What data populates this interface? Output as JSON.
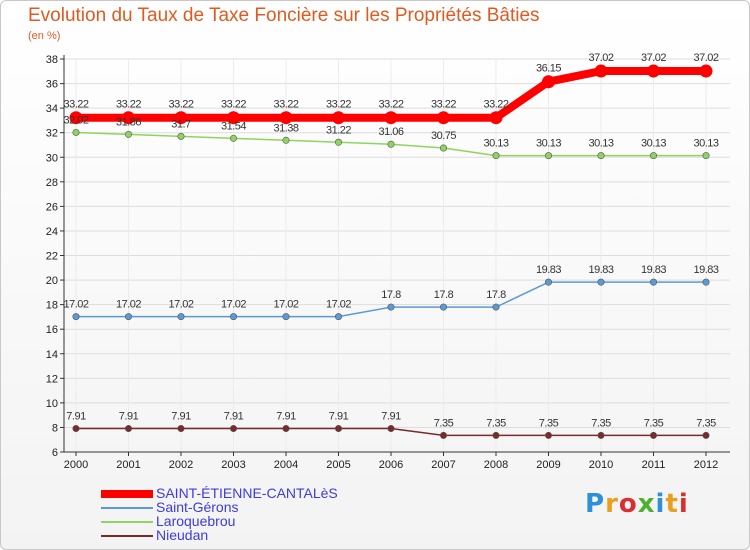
{
  "title": "Evolution du Taux de Taxe Foncière sur les Propriétés Bâties",
  "unit": "(en %)",
  "logo": {
    "text": "Proxiti",
    "colors": [
      "#2f8fd8",
      "#e8a020",
      "#d83030",
      "#50b030",
      "#2f8fd8",
      "#e8a020",
      "#d83030"
    ]
  },
  "chart_data": {
    "type": "line",
    "title": "Evolution du Taux de Taxe Foncière sur les Propriétés Bâties",
    "ylabel": "(en %)",
    "xlabel": "",
    "x": [
      "2000",
      "2001",
      "2002",
      "2003",
      "2004",
      "2005",
      "2006",
      "2007",
      "2008",
      "2009",
      "2010",
      "2011",
      "2012"
    ],
    "ylim": [
      6,
      38
    ],
    "yticks": [
      6,
      8,
      10,
      12,
      14,
      16,
      18,
      20,
      22,
      24,
      26,
      28,
      30,
      32,
      34,
      36,
      38
    ],
    "grid": true,
    "legend_position": "bottom-left",
    "series": [
      {
        "name": "SAINT-ÉTIENNE-CANTALèS",
        "color": "#ff0000",
        "thick": true,
        "values": [
          33.22,
          33.22,
          33.22,
          33.22,
          33.22,
          33.22,
          33.22,
          33.22,
          33.22,
          36.15,
          37.02,
          37.02,
          37.02
        ],
        "labels": [
          "33.22",
          "33.22",
          "33.22",
          "33.22",
          "33.22",
          "33.22",
          "33.22",
          "33.22",
          "33.22",
          "36.15",
          "37.02",
          "37.02",
          "37.02"
        ]
      },
      {
        "name": "Saint-Gérons",
        "color": "#5b9bd5",
        "thick": false,
        "values": [
          17.02,
          17.02,
          17.02,
          17.02,
          17.02,
          17.02,
          17.8,
          17.8,
          17.8,
          19.83,
          19.83,
          19.83,
          19.83
        ],
        "labels": [
          "17.02",
          "17.02",
          "17.02",
          "17.02",
          "17.02",
          "17.02",
          "17.8",
          "17.8",
          "17.8",
          "19.83",
          "19.83",
          "19.83",
          "19.83"
        ]
      },
      {
        "name": "Laroquebrou",
        "color": "#8fd460",
        "thick": false,
        "values": [
          32.02,
          31.86,
          31.7,
          31.54,
          31.38,
          31.22,
          31.06,
          30.75,
          30.13,
          30.13,
          30.13,
          30.13,
          30.13
        ],
        "labels": [
          "32.02",
          "31.86",
          "31.7",
          "31.54",
          "31.38",
          "31.22",
          "31.06",
          "30.75",
          "30.13",
          "30.13",
          "30.13",
          "30.13",
          "30.13"
        ]
      },
      {
        "name": "Nieudan",
        "color": "#7a2a2a",
        "thick": false,
        "values": [
          7.91,
          7.91,
          7.91,
          7.91,
          7.91,
          7.91,
          7.91,
          7.35,
          7.35,
          7.35,
          7.35,
          7.35,
          7.35
        ],
        "labels": [
          "7.91",
          "7.91",
          "7.91",
          "7.91",
          "7.91",
          "7.91",
          "7.91",
          "7.35",
          "7.35",
          "7.35",
          "7.35",
          "7.35",
          "7.35"
        ]
      }
    ]
  }
}
